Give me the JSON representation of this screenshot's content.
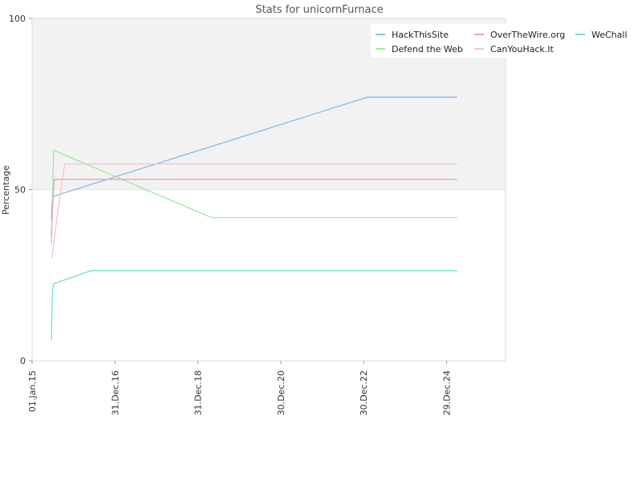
{
  "chart_data": {
    "type": "line",
    "title": "Stats for unicornFurnace",
    "ylabel": "Percentage",
    "xlabel": "",
    "ylim": [
      0,
      100
    ],
    "xlim": [
      "2015-01-01",
      "2026-06-01"
    ],
    "y_ticks": [
      "0",
      "50",
      "100"
    ],
    "x_ticks": [
      {
        "date": "2015-01-01",
        "label": "01.Jan.15"
      },
      {
        "date": "2016-12-31",
        "label": "31.Dec.16"
      },
      {
        "date": "2018-12-31",
        "label": "31.Dec.18"
      },
      {
        "date": "2020-12-30",
        "label": "30.Dec.20"
      },
      {
        "date": "2022-12-30",
        "label": "30.Dec.22"
      },
      {
        "date": "2024-12-29",
        "label": "29.Dec.24"
      }
    ],
    "band": {
      "from": 50,
      "to": 100,
      "color": "#f2f2f2"
    },
    "legend_position": "top-right",
    "series": [
      {
        "name": "HackThisSite",
        "color": "#8ab8f0",
        "points": [
          [
            "2015-06-20",
            41
          ],
          [
            "2015-06-25",
            46
          ],
          [
            "2015-07-05",
            48
          ],
          [
            "2023-02-01",
            77
          ],
          [
            "2025-04-01",
            77
          ]
        ]
      },
      {
        "name": "Defend the Web",
        "color": "#9ee89e",
        "points": [
          [
            "2015-06-20",
            34
          ],
          [
            "2015-07-01",
            50
          ],
          [
            "2015-07-10",
            61.5
          ],
          [
            "2019-05-01",
            41.8
          ],
          [
            "2025-04-01",
            41.8
          ]
        ]
      },
      {
        "name": "OverTheWire.org",
        "color": "#f0a0c0",
        "points": [
          [
            "2015-06-20",
            36
          ],
          [
            "2015-07-01",
            45
          ],
          [
            "2015-07-15",
            53
          ],
          [
            "2025-04-01",
            53
          ]
        ]
      },
      {
        "name": "CanYouHack.It",
        "color": "#f8c0c8",
        "points": [
          [
            "2015-06-25",
            30
          ],
          [
            "2015-08-01",
            40
          ],
          [
            "2015-10-15",
            57.5
          ],
          [
            "2025-04-01",
            57.5
          ]
        ]
      },
      {
        "name": "WeChall",
        "color": "#7ae0c0",
        "points": [
          [
            "2015-06-20",
            6
          ],
          [
            "2015-06-25",
            16
          ],
          [
            "2015-07-01",
            21
          ],
          [
            "2015-07-10",
            22.5
          ],
          [
            "2016-06-01",
            26.3
          ],
          [
            "2025-04-01",
            26.3
          ]
        ]
      }
    ]
  }
}
